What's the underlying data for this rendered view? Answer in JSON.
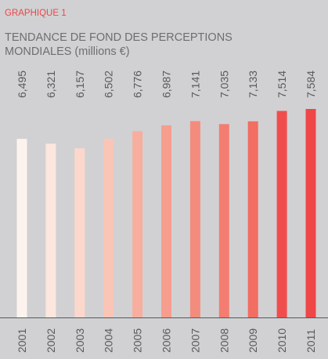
{
  "chart_data": {
    "type": "bar",
    "label": "GRAPHIQUE 1",
    "title": "TENDANCE DE FOND DES PERCEPTIONS MONDIALES (millions €)",
    "title_lines": [
      "TENDANCE DE FOND DES PERCEPTIONS",
      "MONDIALES (millions €)"
    ],
    "categories": [
      "2001",
      "2002",
      "2003",
      "2004",
      "2005",
      "2006",
      "2007",
      "2008",
      "2009",
      "2010",
      "2011"
    ],
    "values": [
      6495,
      6321,
      6157,
      6502,
      6776,
      6987,
      7141,
      7035,
      7133,
      7514,
      7584
    ],
    "value_labels": [
      "6,495",
      "6,321",
      "6,157",
      "6,502",
      "6,776",
      "6,987",
      "7,141",
      "7,035",
      "7,133",
      "7,514",
      "7,584"
    ],
    "bar_colors": [
      "#fdf3ee",
      "#fce6de",
      "#fbd8cb",
      "#fac5b6",
      "#f8ae9e",
      "#f69d8d",
      "#f48c7e",
      "#f37d70",
      "#f26d62",
      "#f04e4d",
      "#ef4648"
    ],
    "ylim": [
      0,
      7800
    ],
    "grid": false,
    "legend": "none",
    "colors": {
      "background": "#d1d1d3",
      "label": "#ef4648",
      "title": "#6d6e71",
      "text": "#58595b",
      "axis": "#58595b"
    }
  }
}
